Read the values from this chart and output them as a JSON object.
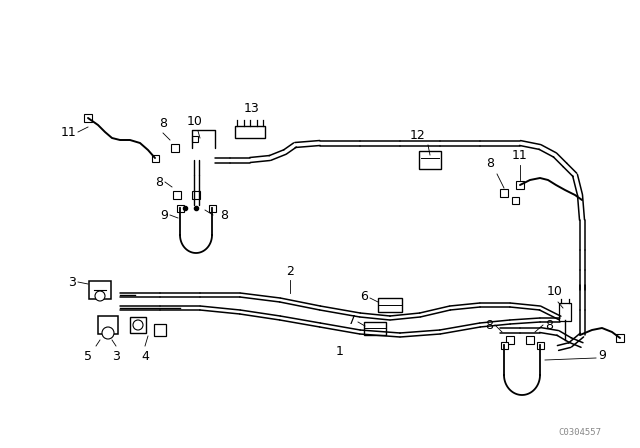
{
  "bg_color": "#ffffff",
  "line_color": "#000000",
  "fig_width": 6.4,
  "fig_height": 4.48,
  "dpi": 100,
  "watermark": "C0304557"
}
